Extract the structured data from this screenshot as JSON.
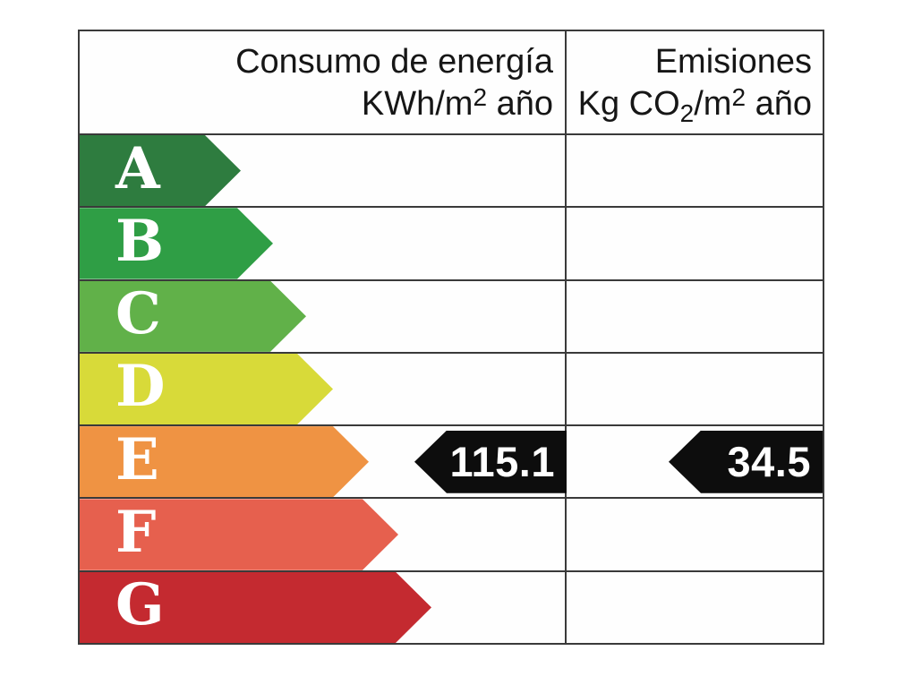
{
  "energy_label": {
    "header": {
      "consumption": {
        "title": "Consumo de energía",
        "unit_pre": "KWh/m",
        "unit_sup": "2",
        "unit_post": " año"
      },
      "emissions": {
        "title": "Emisiones",
        "unit_pre": "Kg CO",
        "unit_sub": "2",
        "unit_mid": "/m",
        "unit_sup": "2",
        "unit_post": " año"
      }
    },
    "ratings": [
      {
        "letter": "A",
        "color": "#2e7c3f",
        "arrow_width": 180
      },
      {
        "letter": "B",
        "color": "#2f9e45",
        "arrow_width": 216
      },
      {
        "letter": "C",
        "color": "#61b149",
        "arrow_width": 253
      },
      {
        "letter": "D",
        "color": "#d8da39",
        "arrow_width": 283
      },
      {
        "letter": "E",
        "color": "#ef9343",
        "arrow_width": 323
      },
      {
        "letter": "F",
        "color": "#e6604e",
        "arrow_width": 356
      },
      {
        "letter": "G",
        "color": "#c42a30",
        "arrow_width": 393
      }
    ],
    "current": {
      "rating": "E",
      "rating_row_index": 4,
      "consumption_value": "115.1",
      "emissions_value": "34.5"
    },
    "style": {
      "border_color": "#3a3a3a",
      "pointer_color": "#0d0d0d",
      "letter_color": "#ffffff",
      "header_text_color": "#161616"
    }
  },
  "chart_data": {
    "type": "bar",
    "categories": [
      "A",
      "B",
      "C",
      "D",
      "E",
      "F",
      "G"
    ],
    "bar_relative_widths": [
      180,
      216,
      253,
      283,
      323,
      356,
      393
    ],
    "bar_colors": [
      "#2e7c3f",
      "#2f9e45",
      "#61b149",
      "#d8da39",
      "#ef9343",
      "#e6604e",
      "#c42a30"
    ],
    "columns": [
      "Consumo de energía KWh/m2 año",
      "Emisiones Kg CO2/m2 año"
    ],
    "series": [
      {
        "name": "Consumo de energía KWh/m2 año",
        "rating": "E",
        "value": 115.1
      },
      {
        "name": "Emisiones Kg CO2/m2 año",
        "rating": "E",
        "value": 34.5
      }
    ],
    "legend_position": "none",
    "grid": true
  }
}
